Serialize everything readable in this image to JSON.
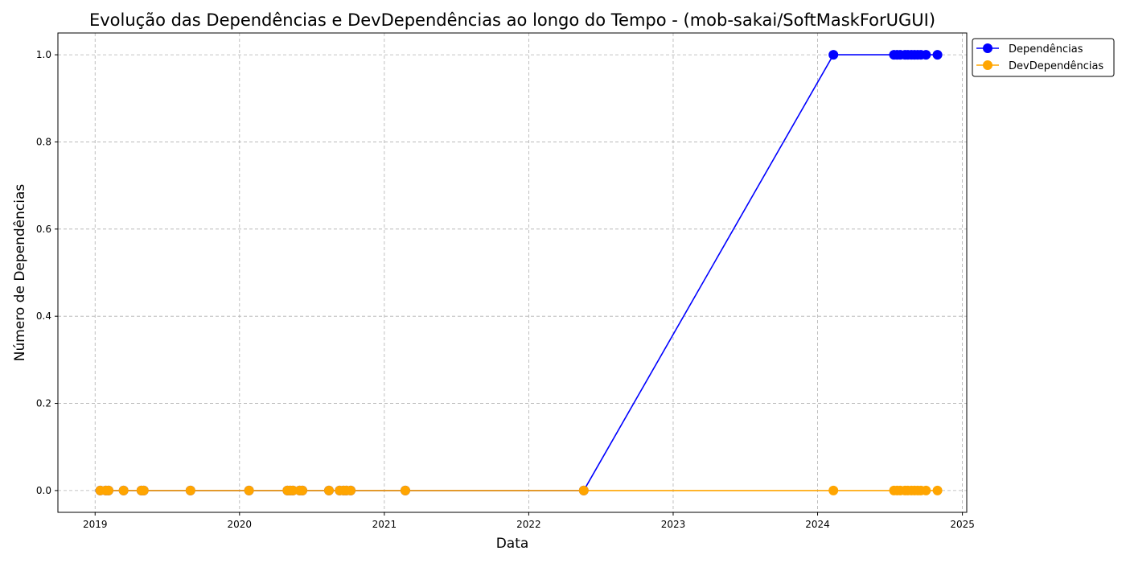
{
  "chart_data": {
    "type": "line",
    "title": "Evolução das Dependências e DevDependências ao longo do Tempo - (mob-sakai/SoftMaskForUGUI)",
    "xlabel": "Data",
    "ylabel": "Número de Dependências",
    "x_tick_labels": [
      "2019",
      "2020",
      "2021",
      "2022",
      "2023",
      "2024",
      "2025"
    ],
    "y_tick_labels": [
      "0.0",
      "0.2",
      "0.4",
      "0.6",
      "0.8",
      "1.0"
    ],
    "xlim": [
      "2018-09-29",
      "2025-01-12"
    ],
    "ylim": [
      -0.05,
      1.05
    ],
    "grid": true,
    "legend_position": "outside-top-right",
    "x": [
      "2019-01-14",
      "2019-01-28",
      "2019-02-04",
      "2019-03-14",
      "2019-04-28",
      "2019-05-04",
      "2019-08-30",
      "2020-01-25",
      "2020-05-01",
      "2020-05-08",
      "2020-05-15",
      "2020-06-01",
      "2020-06-08",
      "2020-08-14",
      "2020-09-10",
      "2020-09-20",
      "2020-09-27",
      "2020-10-08",
      "2021-02-23",
      "2022-05-20",
      "2024-02-10",
      "2024-07-12",
      "2024-07-20",
      "2024-07-28",
      "2024-08-09",
      "2024-08-16",
      "2024-08-25",
      "2024-09-02",
      "2024-09-10",
      "2024-09-18",
      "2024-10-01",
      "2024-10-30"
    ],
    "series": [
      {
        "name": "Dependências",
        "color": "#0000ff",
        "values": [
          0,
          0,
          0,
          0,
          0,
          0,
          0,
          0,
          0,
          0,
          0,
          0,
          0,
          0,
          0,
          0,
          0,
          0,
          0,
          0,
          1,
          1,
          1,
          1,
          1,
          1,
          1,
          1,
          1,
          1,
          1,
          1
        ]
      },
      {
        "name": "DevDependências",
        "color": "#ffa500",
        "values": [
          0,
          0,
          0,
          0,
          0,
          0,
          0,
          0,
          0,
          0,
          0,
          0,
          0,
          0,
          0,
          0,
          0,
          0,
          0,
          0,
          0,
          0,
          0,
          0,
          0,
          0,
          0,
          0,
          0,
          0,
          0,
          0
        ]
      }
    ]
  }
}
